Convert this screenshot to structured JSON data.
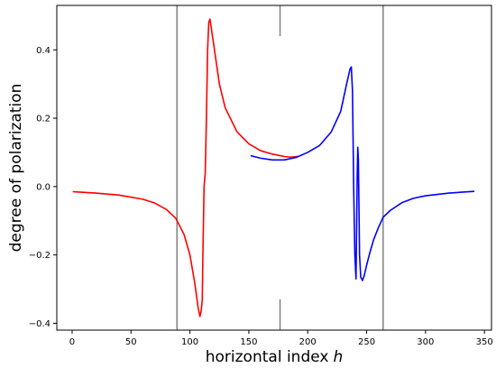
{
  "chart_data": {
    "type": "line",
    "xlabel": "horizontal index",
    "xlabel_var": "h",
    "ylabel": "degree of polarization",
    "xlim": [
      -13,
      356
    ],
    "ylim": [
      -0.42,
      0.53
    ],
    "xticks": [
      0,
      50,
      100,
      150,
      200,
      250,
      300,
      350
    ],
    "yticks": [
      -0.4,
      -0.2,
      0.0,
      0.2,
      0.4
    ],
    "xtick_labels": [
      "0",
      "50",
      "100",
      "150",
      "200",
      "250",
      "300",
      "350"
    ],
    "ytick_labels": [
      "−0.4",
      "−0.2",
      "0.0",
      "0.2",
      "0.4"
    ],
    "grid": false,
    "vertical_lines": [
      {
        "x": 89,
        "from": -0.42,
        "to": 0.53,
        "color": "#808080"
      },
      {
        "x": 264,
        "from": -0.42,
        "to": 0.53,
        "color": "#808080"
      },
      {
        "x": 176.5,
        "from": 0.44,
        "to": 0.53,
        "color": "#808080"
      },
      {
        "x": 176.5,
        "from": -0.42,
        "to": -0.33,
        "color": "#808080"
      }
    ],
    "series": [
      {
        "color": "#ff0000",
        "x": [
          1,
          20,
          40,
          60,
          70,
          80,
          88,
          95,
          100,
          104,
          107,
          108.5,
          109.5,
          110.5,
          111,
          112,
          113,
          114,
          115,
          116,
          117,
          120,
          125,
          130,
          140,
          150,
          160,
          170,
          180,
          185,
          191
        ],
        "y": [
          -0.015,
          -0.019,
          -0.025,
          -0.037,
          -0.048,
          -0.067,
          -0.093,
          -0.14,
          -0.2,
          -0.28,
          -0.355,
          -0.38,
          -0.365,
          -0.33,
          -0.2,
          0.0,
          0.04,
          0.2,
          0.4,
          0.48,
          0.49,
          0.42,
          0.3,
          0.23,
          0.16,
          0.125,
          0.105,
          0.095,
          0.088,
          0.086,
          0.088
        ]
      },
      {
        "color": "#0000ff",
        "x": [
          152,
          160,
          170,
          180,
          190,
          200,
          210,
          220,
          228,
          233,
          236,
          237,
          238,
          239,
          240,
          241,
          242,
          242.5,
          243,
          244,
          245,
          246.5,
          248,
          250,
          253,
          256,
          260,
          264,
          270,
          280,
          290,
          300,
          320,
          341
        ],
        "y": [
          0.09,
          0.083,
          0.078,
          0.078,
          0.085,
          0.1,
          0.12,
          0.16,
          0.22,
          0.3,
          0.345,
          0.35,
          0.28,
          0.0,
          -0.2,
          -0.27,
          0.03,
          0.115,
          0.08,
          -0.2,
          -0.265,
          -0.275,
          -0.26,
          -0.23,
          -0.19,
          -0.155,
          -0.12,
          -0.09,
          -0.07,
          -0.047,
          -0.034,
          -0.027,
          -0.019,
          -0.014
        ]
      }
    ]
  }
}
